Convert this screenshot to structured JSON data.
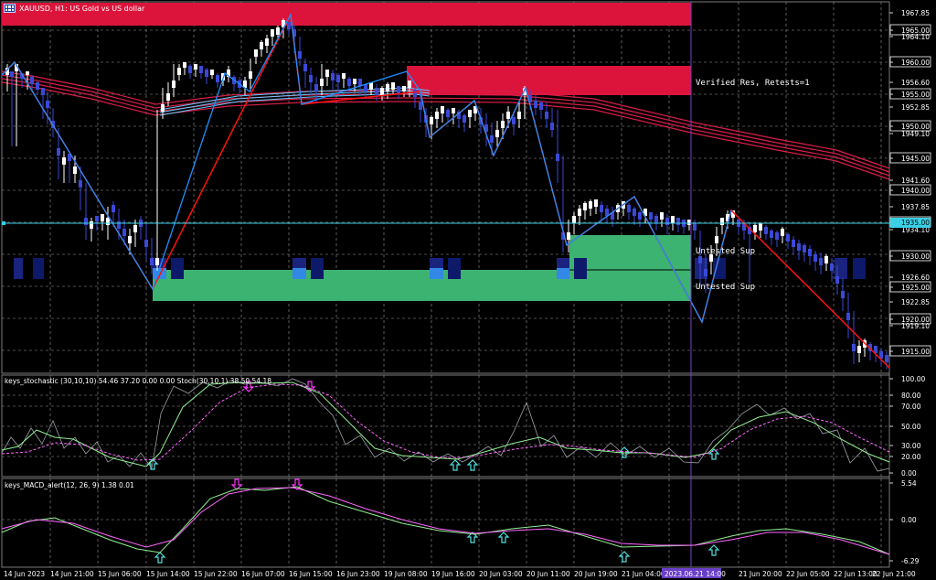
{
  "title": "XAUUSD, H1:  US Gold vs US dollar",
  "colors": {
    "background": "#000000",
    "grid": "#9a9a9a",
    "bull_candle": "#ffffff",
    "bear_candle": "#3a49d6",
    "resistance_zone": "#dc143c",
    "support_zone": "#3cb371",
    "zigzag_red": "#ff1010",
    "zigzag_blue": "#1e90ff",
    "ma_band": "#d81e46",
    "stoch_main": "#ffffff",
    "stoch_signal": "#ff66ff",
    "macd_main": "#90ee90",
    "macd_signal": "#ff66ff",
    "arrow_up": "#4fe0e0",
    "arrow_down": "#ff33ff",
    "price_line": "#39d0e6"
  },
  "price_axis": [
    "1967.85",
    "1965.00",
    "1964.10",
    "1960.00",
    "1956.60",
    "1955.00",
    "1952.85",
    "1950.00",
    "1949.10",
    "1945.00",
    "1941.60",
    "1940.00",
    "1937.85",
    "1935.00",
    "1934.10",
    "1930.00",
    "1926.60",
    "1925.00",
    "1922.85",
    "1920.00",
    "1919.10",
    "1915.00"
  ],
  "annotations": {
    "resistance": "Verified Res, Retests=1",
    "support1": "Untested Sup",
    "support2": "Untested Sup"
  },
  "stochastic": {
    "label": "keys_stochastic (30,10,10) 54.46 37.20 0.00 0.00 Stoch(30,10,1) 38.50 54.18",
    "axis": [
      "100.00",
      "80.00",
      "70.00",
      "50.00",
      "30.00",
      "20.00",
      "0.00"
    ]
  },
  "macd": {
    "label": "keys_MACD_alert(12, 26, 9) 1.38 0.01",
    "axis": [
      "5.54",
      "0.00",
      "-6.29"
    ]
  },
  "time_axis": [
    "14 Jun 2023",
    "14 Jun 21:00",
    "15 Jun 06:00",
    "15 Jun 14:00",
    "15 Jun 22:00",
    "16 Jun 07:00",
    "16 Jun 15:00",
    "16 Jun 23:00",
    "19 Jun 08:00",
    "19 Jun 16:00",
    "20 Jun 03:00",
    "20 Jun 11:00",
    "20 Jun 19:00",
    "21 Jun 04:00",
    "2023.06.21 14:00",
    "21 Jun 20:00",
    "22 Jun 05:00",
    "22 Jun 13:00",
    "22 Jun 21:00"
  ],
  "crosshair_time": "2023.06.21 14:00",
  "current_price": "1935.00"
}
